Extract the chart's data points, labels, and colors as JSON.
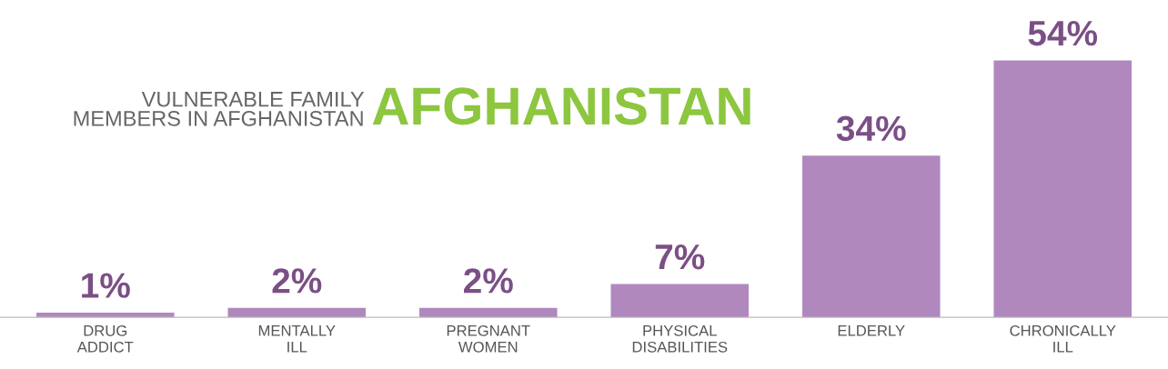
{
  "chart_data": {
    "type": "bar",
    "title": "AFGHANISTAN",
    "subtitle": "VULNERABLE FAMILY\nMEMBERS IN AFGHANISTAN",
    "categories": [
      "DRUG\nADDICT",
      "MENTALLY\nILL",
      "PREGNANT\nWOMEN",
      "PHYSICAL\nDISABILITIES",
      "ELDERLY",
      "CHRONICALLY\nILL"
    ],
    "values": [
      1,
      2,
      2,
      7,
      34,
      54
    ],
    "value_labels": [
      "1%",
      "2%",
      "2%",
      "7%",
      "34%",
      "54%"
    ],
    "color": "#b088be",
    "grid": false,
    "legend": false
  }
}
